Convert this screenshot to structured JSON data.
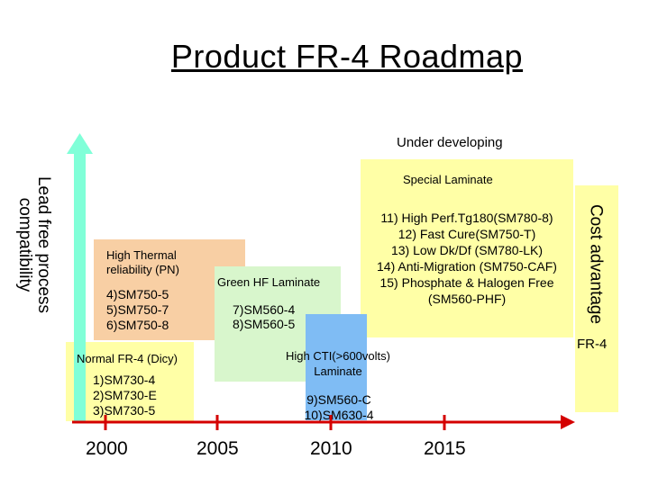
{
  "title": "Product FR-4 Roadmap",
  "under_developing": "Under developing",
  "left_axis": {
    "line1": "Lead free process",
    "line2": "compatibility"
  },
  "right_axis": {
    "label": "Cost advantage",
    "sub": "FR-4"
  },
  "special_laminate": {
    "label": "Special Laminate",
    "items": [
      "11) High Perf.Tg180(SM780-8)",
      "12) Fast Cure(SM750-T)",
      "13) Low Dk/Df (SM780-LK)",
      "14) Anti-Migration (SM750-CAF)",
      "15) Phosphate & Halogen Free",
      "(SM560-PHF)"
    ]
  },
  "high_thermal": {
    "label_line1": "High Thermal",
    "label_line2": "reliability (PN)",
    "items": [
      "4)SM750-5",
      "5)SM750-7",
      "6)SM750-8"
    ]
  },
  "green_hf": {
    "label": "Green HF Laminate",
    "items": [
      "7)SM560-4",
      "8)SM560-5"
    ]
  },
  "high_cti": {
    "label_line1": "High CTI(>600volts)",
    "label_line2": "Laminate",
    "items": [
      "9)SM560-C",
      "10)SM630-4"
    ]
  },
  "normal": {
    "label": "Normal FR-4 (Dicy)",
    "items": [
      "1)SM730-4",
      "2)SM730-E",
      "3)SM730-5"
    ]
  },
  "years": [
    "2000",
    "2005",
    "2010",
    "2015"
  ],
  "colors": {
    "yellow": "#ffffa6",
    "peach": "#f8cfa4",
    "green": "#d8f6cc",
    "blue": "#7fbcf4",
    "cyan_arrow": "#80ffd8",
    "red_axis": "#d40000"
  }
}
